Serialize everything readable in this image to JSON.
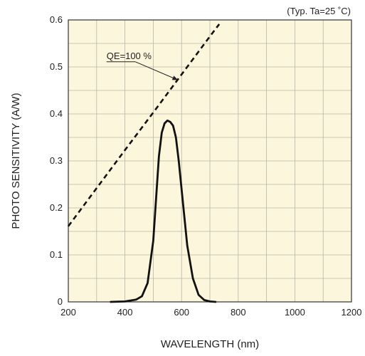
{
  "chart_data": {
    "type": "line",
    "title": "",
    "condition_note": "(Typ. Ta=25 ˚C)",
    "xlabel": "WAVELENGTH (nm)",
    "ylabel": "PHOTO SENSITIVITY (A/W)",
    "xlim": [
      200,
      1200
    ],
    "ylim": [
      0,
      0.6
    ],
    "x_ticks": [
      "200",
      "400",
      "600",
      "800",
      "1000",
      "1200"
    ],
    "y_ticks": [
      "0",
      "0.1",
      "0.2",
      "0.3",
      "0.4",
      "0.5",
      "0.6"
    ],
    "grid": true,
    "plot_background": "#fbf6dc",
    "series": [
      {
        "name": "QE=100 %",
        "style": "dashed",
        "color": "#111111",
        "x": [
          200,
          300,
          400,
          500,
          600,
          700,
          733
        ],
        "y": [
          0.161,
          0.242,
          0.323,
          0.403,
          0.484,
          0.565,
          0.591
        ]
      },
      {
        "style": "solid",
        "color": "#111111",
        "x": [
          350,
          400,
          440,
          460,
          480,
          500,
          510,
          520,
          530,
          540,
          550,
          560,
          570,
          580,
          590,
          600,
          610,
          620,
          640,
          660,
          680,
          700,
          720
        ],
        "y": [
          0,
          0.001,
          0.005,
          0.012,
          0.04,
          0.13,
          0.22,
          0.31,
          0.36,
          0.38,
          0.386,
          0.383,
          0.375,
          0.35,
          0.3,
          0.24,
          0.18,
          0.12,
          0.05,
          0.015,
          0.004,
          0.001,
          0
        ]
      }
    ],
    "annotations": [
      {
        "text": "QE=100 %",
        "target_series": "QE=100 %"
      }
    ]
  }
}
